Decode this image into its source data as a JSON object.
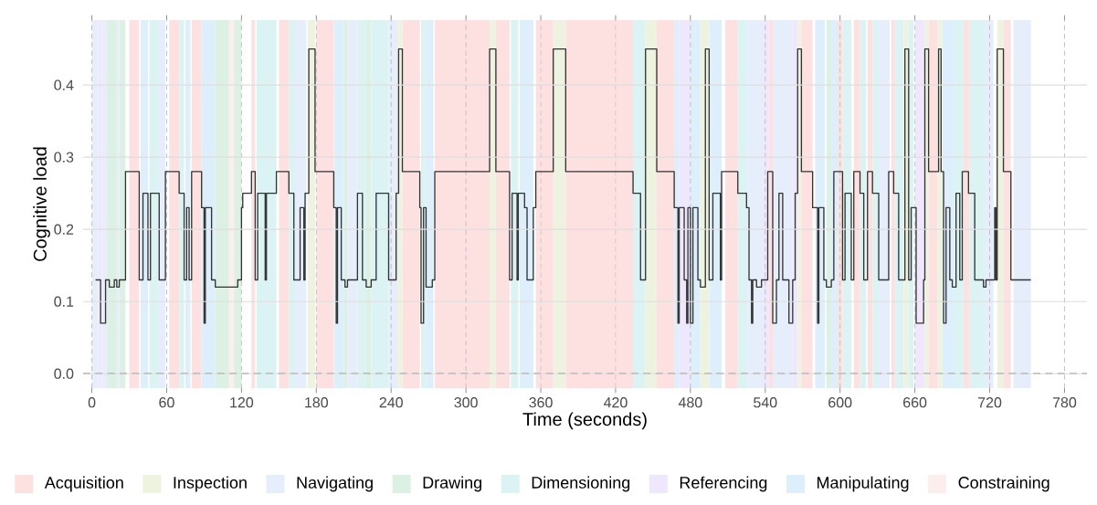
{
  "chart_data": {
    "type": "step",
    "xlabel": "Time (seconds)",
    "ylabel": "Cognitive load",
    "color": "#333333",
    "marker": "none",
    "line_style": "solid",
    "grid": "y",
    "legend": "bottom",
    "xlim": [
      -7,
      798
    ],
    "ylim": [
      -0.02,
      0.49
    ],
    "xticks": [
      0,
      60,
      120,
      180,
      240,
      300,
      360,
      420,
      480,
      540,
      600,
      660,
      720,
      780
    ],
    "yticks": [
      {
        "value": 0,
        "label": "0.0"
      },
      {
        "value": 0.1,
        "label": "0.1"
      },
      {
        "value": 0.2,
        "label": "0.2"
      },
      {
        "value": 0.3,
        "label": "0.3"
      },
      {
        "value": 0.4,
        "label": "0.4"
      }
    ],
    "x": [
      3,
      7,
      11,
      14,
      18,
      20,
      22,
      27,
      38,
      41,
      45,
      47,
      54,
      59,
      70,
      74,
      76,
      78,
      80,
      88,
      90,
      91,
      96,
      99,
      117,
      120,
      121,
      128,
      131,
      133,
      139,
      140,
      148,
      158,
      162,
      167,
      170,
      171,
      174,
      179,
      194,
      196,
      197,
      200,
      203,
      205,
      213,
      217,
      220,
      224,
      228,
      238,
      244,
      246,
      249,
      263,
      264,
      266,
      268,
      273,
      275,
      319,
      324,
      335,
      337,
      341,
      342,
      347,
      349,
      354,
      356,
      370,
      380,
      434,
      440,
      444,
      453,
      467,
      470,
      471,
      475,
      477,
      478,
      480,
      482,
      486,
      488,
      492,
      495,
      498,
      504,
      505,
      518,
      525,
      527,
      529,
      530,
      533,
      537,
      542,
      546,
      549,
      551,
      554,
      559,
      562,
      564,
      566,
      569,
      578,
      582,
      583,
      587,
      589,
      593,
      595,
      602,
      604,
      609,
      611,
      616,
      619,
      622,
      626,
      631,
      639,
      643,
      647,
      652,
      655,
      657,
      661,
      667,
      668,
      671,
      679,
      681,
      683,
      685,
      688,
      690,
      693,
      696,
      698,
      703,
      708,
      715,
      717,
      724,
      725,
      726,
      731,
      737,
      753
    ],
    "values": [
      0.13,
      0.07,
      0.13,
      0.12,
      0.13,
      0.12,
      0.13,
      0.28,
      0.13,
      0.25,
      0.13,
      0.25,
      0.13,
      0.28,
      0.25,
      0.13,
      0.23,
      0.13,
      0.28,
      0.23,
      0.07,
      0.23,
      0.13,
      0.12,
      0.13,
      0.23,
      0.25,
      0.28,
      0.13,
      0.25,
      0.13,
      0.25,
      0.28,
      0.25,
      0.13,
      0.23,
      0.13,
      0.25,
      0.45,
      0.28,
      0.23,
      0.07,
      0.23,
      0.13,
      0.12,
      0.13,
      0.25,
      0.13,
      0.12,
      0.13,
      0.25,
      0.13,
      0.25,
      0.45,
      0.28,
      0.23,
      0.07,
      0.23,
      0.12,
      0.13,
      0.28,
      0.45,
      0.28,
      0.13,
      0.25,
      0.13,
      0.25,
      0.23,
      0.13,
      0.23,
      0.28,
      0.45,
      0.28,
      0.25,
      0.13,
      0.45,
      0.28,
      0.23,
      0.07,
      0.23,
      0.13,
      0.07,
      0.23,
      0.07,
      0.23,
      0.13,
      0.12,
      0.45,
      0.13,
      0.25,
      0.13,
      0.28,
      0.25,
      0.23,
      0.13,
      0.07,
      0.13,
      0.12,
      0.13,
      0.28,
      0.07,
      0.13,
      0.25,
      0.13,
      0.07,
      0.13,
      0.25,
      0.45,
      0.28,
      0.23,
      0.07,
      0.23,
      0.13,
      0.12,
      0.13,
      0.28,
      0.13,
      0.25,
      0.13,
      0.28,
      0.25,
      0.13,
      0.28,
      0.25,
      0.13,
      0.28,
      0.25,
      0.13,
      0.45,
      0.13,
      0.23,
      0.07,
      0.13,
      0.45,
      0.28,
      0.45,
      0.28,
      0.07,
      0.23,
      0.13,
      0.12,
      0.25,
      0.13,
      0.28,
      0.25,
      0.13,
      0.12,
      0.13,
      0.23,
      0.13,
      0.45,
      0.28,
      0.13,
      0.13
    ],
    "ref_lines": [
      {
        "axis": "x",
        "value": 0,
        "color": "#bdbdbd",
        "line_style": "dashed"
      },
      {
        "axis": "x",
        "value": 60,
        "color": "#bdbdbd",
        "line_style": "dashed"
      },
      {
        "axis": "x",
        "value": 120,
        "color": "#bdbdbd",
        "line_style": "dashed"
      },
      {
        "axis": "x",
        "value": 180,
        "color": "#bdbdbd",
        "line_style": "dashed"
      },
      {
        "axis": "x",
        "value": 240,
        "color": "#bdbdbd",
        "line_style": "dashed"
      },
      {
        "axis": "x",
        "value": 300,
        "color": "#bdbdbd",
        "line_style": "dashed"
      },
      {
        "axis": "x",
        "value": 360,
        "color": "#bdbdbd",
        "line_style": "dashed"
      },
      {
        "axis": "x",
        "value": 420,
        "color": "#bdbdbd",
        "line_style": "dashed"
      },
      {
        "axis": "x",
        "value": 480,
        "color": "#bdbdbd",
        "line_style": "dashed"
      },
      {
        "axis": "x",
        "value": 540,
        "color": "#bdbdbd",
        "line_style": "dashed"
      },
      {
        "axis": "x",
        "value": 600,
        "color": "#bdbdbd",
        "line_style": "dashed"
      },
      {
        "axis": "x",
        "value": 660,
        "color": "#bdbdbd",
        "line_style": "dashed"
      },
      {
        "axis": "x",
        "value": 720,
        "color": "#bdbdbd",
        "line_style": "dashed"
      },
      {
        "axis": "x",
        "value": 780,
        "color": "#bdbdbd",
        "line_style": "dashed"
      },
      {
        "axis": "y",
        "value": 0,
        "color": "#8c8c8c",
        "line_style": "dashed"
      }
    ],
    "bands": [
      {
        "axis": "x",
        "from": 30,
        "to": 38,
        "label": "Acquisition",
        "color": "#fde0e0"
      },
      {
        "axis": "x",
        "from": 173,
        "to": 179,
        "label": "Inspection",
        "color": "#eef3df"
      },
      {
        "axis": "x",
        "from": 0,
        "to": 5,
        "label": "Navigating",
        "color": "#e6eefc"
      },
      {
        "axis": "x",
        "from": 12,
        "to": 20,
        "label": "Drawing",
        "color": "#dcf1e3"
      },
      {
        "axis": "x",
        "from": 46,
        "to": 53,
        "label": "Dimensioning",
        "color": "#dcf3f3"
      },
      {
        "axis": "x",
        "from": 5,
        "to": 8,
        "label": "Referencing",
        "color": "#efe8fc"
      },
      {
        "axis": "x",
        "from": 39,
        "to": 45,
        "label": "Manipulating",
        "color": "#dceffb"
      },
      {
        "axis": "x",
        "from": 110,
        "to": 114,
        "label": "Constraining",
        "color": "#fdeeee"
      },
      {
        "axis": "x",
        "from": 8,
        "to": 12,
        "color": "#e6eefc"
      },
      {
        "axis": "x",
        "from": 20,
        "to": 22,
        "color": "#e6eefc"
      },
      {
        "axis": "x",
        "from": 22,
        "to": 27,
        "color": "#dcf1e3"
      },
      {
        "axis": "x",
        "from": 53,
        "to": 59,
        "color": "#e6eefc"
      },
      {
        "axis": "x",
        "from": 62,
        "to": 70,
        "color": "#fde0e0"
      },
      {
        "axis": "x",
        "from": 70,
        "to": 74,
        "color": "#dcf3f3"
      },
      {
        "axis": "x",
        "from": 75,
        "to": 79,
        "color": "#dceffb"
      },
      {
        "axis": "x",
        "from": 80,
        "to": 88,
        "color": "#fde0e0"
      },
      {
        "axis": "x",
        "from": 88,
        "to": 99,
        "color": "#dceffb"
      },
      {
        "axis": "x",
        "from": 99,
        "to": 110,
        "color": "#dcf1e3"
      },
      {
        "axis": "x",
        "from": 114,
        "to": 120,
        "color": "#dcf1e3"
      },
      {
        "axis": "x",
        "from": 128,
        "to": 131,
        "color": "#fde0e0"
      },
      {
        "axis": "x",
        "from": 132,
        "to": 148,
        "color": "#dcf3f3"
      },
      {
        "axis": "x",
        "from": 150,
        "to": 158,
        "color": "#fde0e0"
      },
      {
        "axis": "x",
        "from": 158,
        "to": 163,
        "color": "#dcf3f3"
      },
      {
        "axis": "x",
        "from": 163,
        "to": 172,
        "color": "#e6eefc"
      },
      {
        "axis": "x",
        "from": 180,
        "to": 194,
        "color": "#fde0e0"
      },
      {
        "axis": "x",
        "from": 194,
        "to": 202,
        "color": "#dceffb"
      },
      {
        "axis": "x",
        "from": 202,
        "to": 205,
        "color": "#dcf1e3"
      },
      {
        "axis": "x",
        "from": 205,
        "to": 213,
        "color": "#e6eefc"
      },
      {
        "axis": "x",
        "from": 213,
        "to": 220,
        "color": "#dcf3f3"
      },
      {
        "axis": "x",
        "from": 220,
        "to": 224,
        "color": "#dcf1e3"
      },
      {
        "axis": "x",
        "from": 224,
        "to": 238,
        "color": "#dcf3f3"
      },
      {
        "axis": "x",
        "from": 238,
        "to": 245,
        "color": "#e6eefc"
      },
      {
        "axis": "x",
        "from": 245,
        "to": 249,
        "color": "#eef3df"
      },
      {
        "axis": "x",
        "from": 249,
        "to": 263,
        "color": "#fde0e0"
      },
      {
        "axis": "x",
        "from": 264,
        "to": 268,
        "color": "#dcf3f3"
      },
      {
        "axis": "x",
        "from": 268,
        "to": 274,
        "color": "#dceffb"
      },
      {
        "axis": "x",
        "from": 275,
        "to": 319,
        "color": "#fde0e0"
      },
      {
        "axis": "x",
        "from": 319,
        "to": 324,
        "color": "#eef3df"
      },
      {
        "axis": "x",
        "from": 324,
        "to": 335,
        "color": "#fde0e0"
      },
      {
        "axis": "x",
        "from": 336,
        "to": 342,
        "color": "#dcf3f3"
      },
      {
        "axis": "x",
        "from": 343,
        "to": 354,
        "color": "#dceffb"
      },
      {
        "axis": "x",
        "from": 356,
        "to": 370,
        "color": "#fde0e0"
      },
      {
        "axis": "x",
        "from": 370,
        "to": 380,
        "color": "#eef3df"
      },
      {
        "axis": "x",
        "from": 380,
        "to": 434,
        "color": "#fde0e0"
      },
      {
        "axis": "x",
        "from": 434,
        "to": 444,
        "color": "#dcf3f3"
      },
      {
        "axis": "x",
        "from": 444,
        "to": 453,
        "color": "#eef3df"
      },
      {
        "axis": "x",
        "from": 453,
        "to": 467,
        "color": "#fde0e0"
      },
      {
        "axis": "x",
        "from": 467,
        "to": 471,
        "color": "#dceffb"
      },
      {
        "axis": "x",
        "from": 471,
        "to": 480,
        "color": "#efe8fc"
      },
      {
        "axis": "x",
        "from": 480,
        "to": 488,
        "color": "#dceffb"
      },
      {
        "axis": "x",
        "from": 488,
        "to": 495,
        "color": "#eef3df"
      },
      {
        "axis": "x",
        "from": 495,
        "to": 505,
        "color": "#dceffb"
      },
      {
        "axis": "x",
        "from": 508,
        "to": 518,
        "color": "#fde0e0"
      },
      {
        "axis": "x",
        "from": 518,
        "to": 526,
        "color": "#dcf3f3"
      },
      {
        "axis": "x",
        "from": 526,
        "to": 538,
        "color": "#e6eefc"
      },
      {
        "axis": "x",
        "from": 538,
        "to": 543,
        "color": "#efe8fc"
      },
      {
        "axis": "x",
        "from": 543,
        "to": 546,
        "color": "#fde0e0"
      },
      {
        "axis": "x",
        "from": 546,
        "to": 562,
        "color": "#e6eefc"
      },
      {
        "axis": "x",
        "from": 562,
        "to": 566,
        "color": "#efe8fc"
      },
      {
        "axis": "x",
        "from": 566,
        "to": 569,
        "color": "#eef3df"
      },
      {
        "axis": "x",
        "from": 569,
        "to": 578,
        "color": "#fde0e0"
      },
      {
        "axis": "x",
        "from": 580,
        "to": 588,
        "color": "#dceffb"
      },
      {
        "axis": "x",
        "from": 589,
        "to": 593,
        "color": "#dcf1e3"
      },
      {
        "axis": "x",
        "from": 593,
        "to": 598,
        "color": "#dceffb"
      },
      {
        "axis": "x",
        "from": 598,
        "to": 602,
        "color": "#fde0e0"
      },
      {
        "axis": "x",
        "from": 602,
        "to": 609,
        "color": "#dcf3f3"
      },
      {
        "axis": "x",
        "from": 611,
        "to": 616,
        "color": "#fde0e0"
      },
      {
        "axis": "x",
        "from": 616,
        "to": 621,
        "color": "#dcf3f3"
      },
      {
        "axis": "x",
        "from": 622,
        "to": 626,
        "color": "#fde0e0"
      },
      {
        "axis": "x",
        "from": 626,
        "to": 631,
        "color": "#dcf3f3"
      },
      {
        "axis": "x",
        "from": 631,
        "to": 640,
        "color": "#e6eefc"
      },
      {
        "axis": "x",
        "from": 641,
        "to": 644,
        "color": "#fde0e0"
      },
      {
        "axis": "x",
        "from": 644,
        "to": 651,
        "color": "#dcf3f3"
      },
      {
        "axis": "x",
        "from": 651,
        "to": 655,
        "color": "#eef3df"
      },
      {
        "axis": "x",
        "from": 655,
        "to": 659,
        "color": "#dcf3f3"
      },
      {
        "axis": "x",
        "from": 660,
        "to": 668,
        "color": "#efe8fc"
      },
      {
        "axis": "x",
        "from": 668,
        "to": 671,
        "color": "#eef3df"
      },
      {
        "axis": "x",
        "from": 671,
        "to": 678,
        "color": "#fde0e0"
      },
      {
        "axis": "x",
        "from": 678,
        "to": 682,
        "color": "#eef3df"
      },
      {
        "axis": "x",
        "from": 682,
        "to": 691,
        "color": "#dceffb"
      },
      {
        "axis": "x",
        "from": 691,
        "to": 699,
        "color": "#dcf3f3"
      },
      {
        "axis": "x",
        "from": 699,
        "to": 704,
        "color": "#fde0e0"
      },
      {
        "axis": "x",
        "from": 704,
        "to": 716,
        "color": "#dcf3f3"
      },
      {
        "axis": "x",
        "from": 716,
        "to": 723,
        "color": "#e6eefc"
      },
      {
        "axis": "x",
        "from": 726,
        "to": 731,
        "color": "#eef3df"
      },
      {
        "axis": "x",
        "from": 731,
        "to": 737,
        "color": "#fde0e0"
      },
      {
        "axis": "x",
        "from": 739,
        "to": 753,
        "color": "#e6eefc"
      }
    ]
  }
}
